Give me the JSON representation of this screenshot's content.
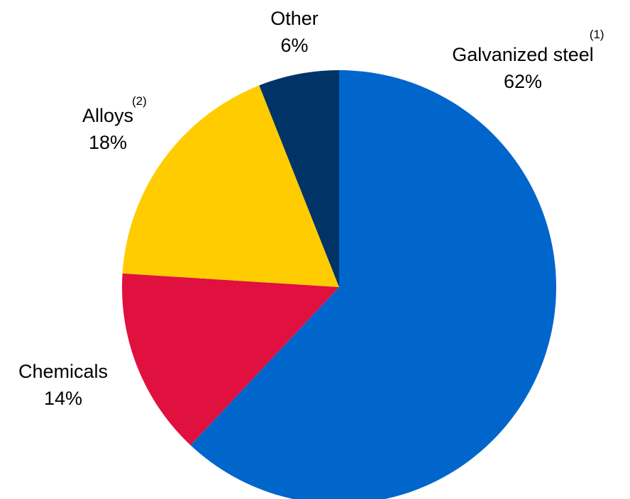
{
  "chart_data": {
    "type": "pie",
    "title": "",
    "slices": [
      {
        "label": "Galvanized steel",
        "value": 62,
        "display": "62%",
        "footnote": "(1)",
        "color": "#0066CC"
      },
      {
        "label": "Chemicals",
        "value": 14,
        "display": "14%",
        "footnote": "",
        "color": "#E0103F"
      },
      {
        "label": "Alloys",
        "value": 18,
        "display": "18%",
        "footnote": "(2)",
        "color": "#FFCC00"
      },
      {
        "label": "Other",
        "value": 6,
        "display": "6%",
        "footnote": "",
        "color": "#003366"
      }
    ],
    "start_angle_deg": 0,
    "direction": "clockwise"
  }
}
